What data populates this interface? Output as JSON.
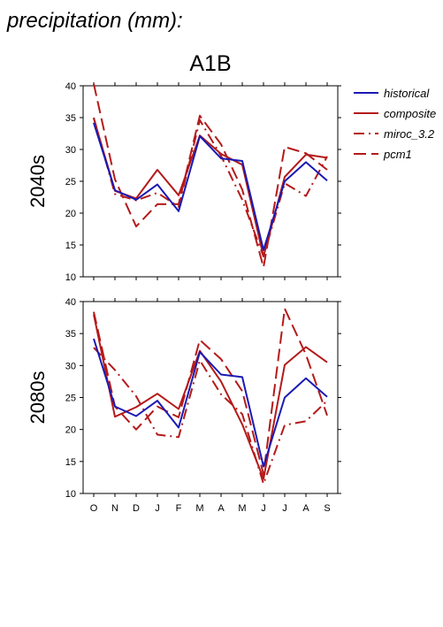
{
  "figure": {
    "title": "precipitation (mm):",
    "panel_title": "A1B"
  },
  "colors": {
    "historical": "#1a1ab4",
    "composite": "#b41a1a",
    "miroc_3.2": "#b41a1a",
    "pcm1": "#b41a1a"
  },
  "legend": {
    "placement": "right",
    "entries": [
      {
        "name": "historical",
        "style": "solid",
        "color": "#1a1ab4"
      },
      {
        "name": "composite",
        "style": "solid",
        "color": "#b41a1a"
      },
      {
        "name": "miroc_3.2",
        "style": "dashdot",
        "color": "#b41a1a"
      },
      {
        "name": "pcm1",
        "style": "dashed",
        "color": "#b41a1a"
      }
    ]
  },
  "chart_data": [
    {
      "type": "line",
      "ylabel": "2040s",
      "xlabel": "",
      "ylim": [
        10,
        40
      ],
      "yticks": [
        10,
        15,
        20,
        25,
        30,
        35,
        40
      ],
      "categories": [
        "O",
        "N",
        "D",
        "J",
        "F",
        "M",
        "A",
        "M",
        "J",
        "J",
        "A",
        "S"
      ],
      "series": [
        {
          "name": "historical",
          "values": [
            34.2,
            23.6,
            22.1,
            24.5,
            20.3,
            32.1,
            28.6,
            28.2,
            14.2,
            25.0,
            28.0,
            25.1
          ]
        },
        {
          "name": "composite",
          "values": [
            34.9,
            23.5,
            22.3,
            26.8,
            22.8,
            32.2,
            29.3,
            27.6,
            13.2,
            25.7,
            29.2,
            28.7
          ]
        },
        {
          "name": "miroc_3.2",
          "values": [
            35.0,
            23.0,
            22.0,
            23.2,
            21.0,
            34.6,
            29.0,
            22.1,
            13.2,
            24.7,
            22.7,
            28.9
          ]
        },
        {
          "name": "pcm1",
          "values": [
            40.3,
            25.3,
            17.9,
            21.4,
            21.4,
            35.3,
            30.8,
            23.7,
            11.5,
            30.4,
            29.4,
            26.8
          ]
        }
      ]
    },
    {
      "type": "line",
      "ylabel": "2080s",
      "xlabel": "",
      "ylim": [
        10,
        40
      ],
      "yticks": [
        10,
        15,
        20,
        25,
        30,
        35,
        40
      ],
      "categories": [
        "O",
        "N",
        "D",
        "J",
        "F",
        "M",
        "A",
        "M",
        "J",
        "J",
        "A",
        "S"
      ],
      "series": [
        {
          "name": "historical",
          "values": [
            34.2,
            23.6,
            22.1,
            24.5,
            20.3,
            32.1,
            28.6,
            28.2,
            14.2,
            25.0,
            28.0,
            25.1
          ]
        },
        {
          "name": "composite",
          "values": [
            38.0,
            22.0,
            23.5,
            25.6,
            23.2,
            32.3,
            27.5,
            20.8,
            12.3,
            30.1,
            32.9,
            30.5
          ]
        },
        {
          "name": "miroc_3.2",
          "values": [
            32.8,
            29.3,
            25.2,
            19.2,
            18.8,
            30.8,
            25.5,
            22.4,
            11.5,
            20.7,
            21.3,
            24.5
          ]
        },
        {
          "name": "pcm1",
          "values": [
            38.4,
            23.6,
            20.0,
            23.6,
            21.9,
            34.0,
            31.0,
            26.0,
            13.0,
            38.9,
            31.7,
            22.2
          ]
        }
      ]
    }
  ]
}
